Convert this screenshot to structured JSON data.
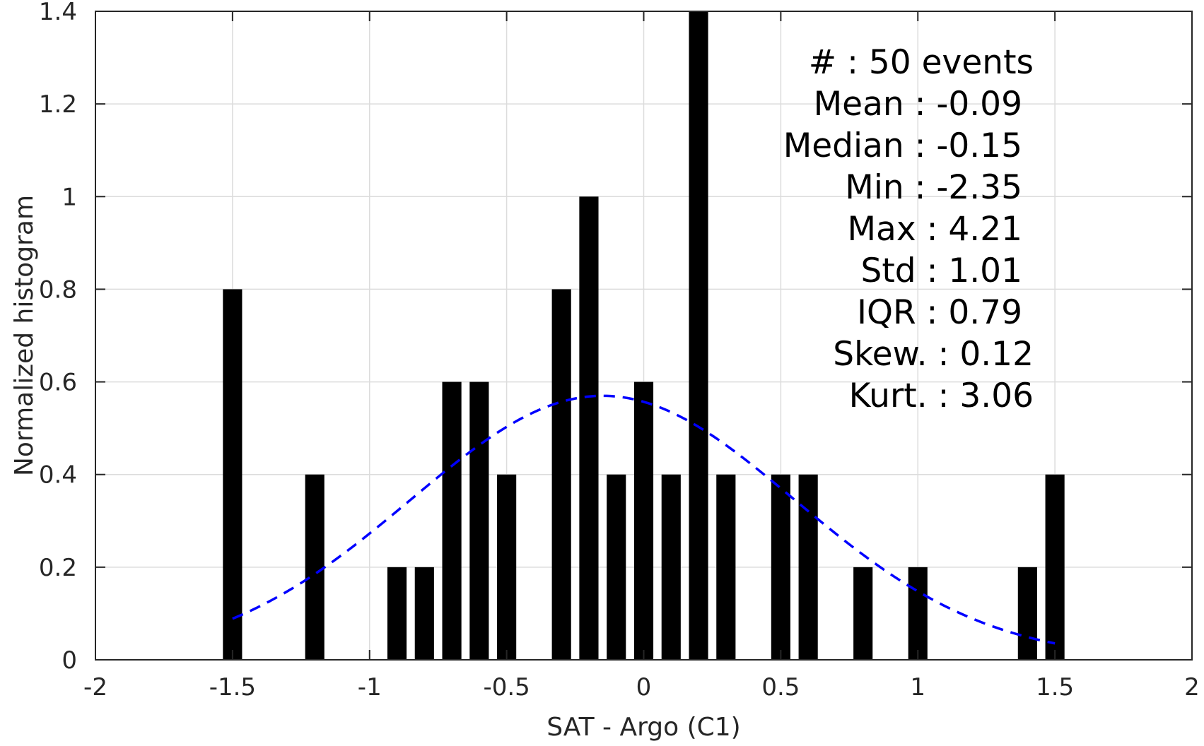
{
  "chart_data": {
    "type": "bar",
    "title": "",
    "xlabel": "SAT - Argo (C1)",
    "ylabel": "Normalized histogram",
    "xlim": [
      -2,
      2
    ],
    "ylim": [
      0,
      1.4
    ],
    "grid": true,
    "x_ticks": [
      "-2",
      "-1.5",
      "-1",
      "-0.5",
      "0",
      "0.5",
      "1",
      "1.5",
      "2"
    ],
    "y_ticks": [
      "0",
      "0.2",
      "0.4",
      "0.6",
      "0.8",
      "1",
      "1.2",
      "1.4"
    ],
    "bar_color": "#000000",
    "bar_width": 0.07,
    "bars": [
      {
        "x": -1.5,
        "y": 0.8
      },
      {
        "x": -1.2,
        "y": 0.4
      },
      {
        "x": -0.9,
        "y": 0.2
      },
      {
        "x": -0.8,
        "y": 0.2
      },
      {
        "x": -0.7,
        "y": 0.6
      },
      {
        "x": -0.6,
        "y": 0.6
      },
      {
        "x": -0.5,
        "y": 0.4
      },
      {
        "x": -0.3,
        "y": 0.8
      },
      {
        "x": -0.2,
        "y": 1.0
      },
      {
        "x": -0.1,
        "y": 0.4
      },
      {
        "x": 0.0,
        "y": 0.6
      },
      {
        "x": 0.1,
        "y": 0.4
      },
      {
        "x": 0.2,
        "y": 1.4
      },
      {
        "x": 0.3,
        "y": 0.4
      },
      {
        "x": 0.5,
        "y": 0.4
      },
      {
        "x": 0.6,
        "y": 0.4
      },
      {
        "x": 0.8,
        "y": 0.2
      },
      {
        "x": 1.0,
        "y": 0.2
      },
      {
        "x": 1.4,
        "y": 0.2
      },
      {
        "x": 1.5,
        "y": 0.4
      }
    ],
    "fit_curve": {
      "type": "gaussian",
      "mean": -0.15,
      "std": 0.7,
      "xrange": [
        -1.5,
        1.5
      ],
      "color": "#0000ff",
      "style": "dashed"
    },
    "stats_box": {
      "placement": "top-right",
      "lines": [
        {
          "key": "# : 50 events"
        },
        {
          "key": "Mean : -0.09"
        },
        {
          "key": "Median : -0.15"
        },
        {
          "key": "Min : -2.35"
        },
        {
          "key": "Max : 4.21"
        },
        {
          "key": "Std : 1.01"
        },
        {
          "key": "IQR : 0.79"
        },
        {
          "key": "Skew. : 0.12"
        },
        {
          "key": "Kurt. : 3.06"
        }
      ]
    }
  }
}
